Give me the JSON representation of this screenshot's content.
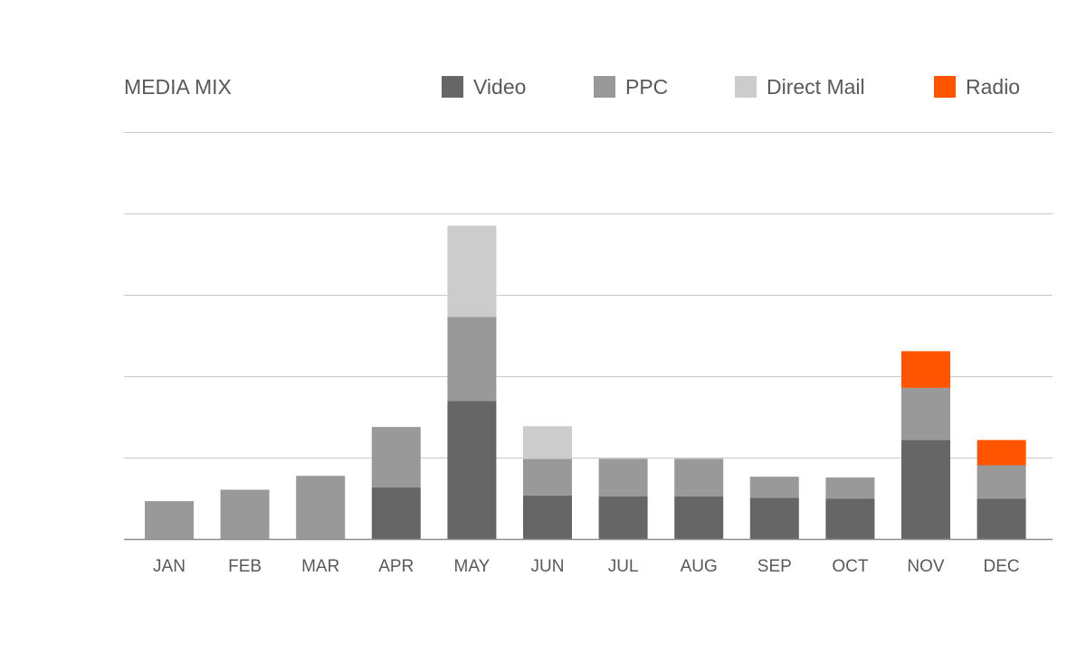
{
  "chart_data": {
    "type": "bar",
    "stacked": true,
    "title": "MEDIA MIX",
    "legend_position": "top",
    "grid": true,
    "ylim": [
      0,
      5
    ],
    "categories": [
      "JAN",
      "FEB",
      "MAR",
      "APR",
      "MAY",
      "JUN",
      "JUL",
      "AUG",
      "SEP",
      "OCT",
      "NOV",
      "DEC"
    ],
    "series": [
      {
        "name": "Video",
        "color": "#666666",
        "values": [
          0,
          0,
          0,
          0.64,
          1.7,
          0.54,
          0.53,
          0.53,
          0.51,
          0.5,
          1.22,
          0.5
        ]
      },
      {
        "name": "PPC",
        "color": "#999999",
        "values": [
          0.47,
          0.61,
          0.78,
          0.74,
          1.03,
          0.45,
          0.46,
          0.46,
          0.26,
          0.26,
          0.64,
          0.41
        ]
      },
      {
        "name": "Direct Mail",
        "color": "#cccccc",
        "values": [
          0,
          0,
          0,
          0,
          1.12,
          0.4,
          0,
          0,
          0,
          0,
          0,
          0
        ]
      },
      {
        "name": "Radio",
        "color": "#ff5500",
        "values": [
          0,
          0,
          0,
          0,
          0,
          0,
          0,
          0,
          0,
          0,
          0.45,
          0.31
        ]
      }
    ]
  }
}
